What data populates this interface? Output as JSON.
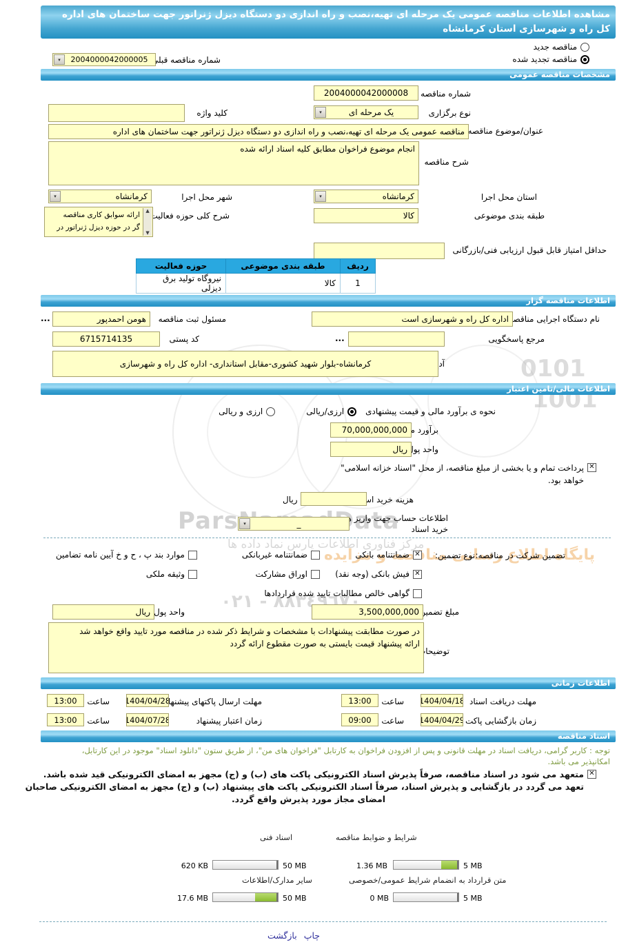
{
  "page": {
    "title": "مشاهده اطلاعات مناقصه عمومی یک مرحله ای تهیه،نصب و راه اندازی دو دستگاه دیزل ژنراتور جهت ساختمان های اداره کل راه و شهرسازی استان کرمانشاه"
  },
  "tender_state": {
    "new_label": "مناقصه جدید",
    "new_selected": false,
    "renewed_label": "مناقصه تجدید شده",
    "renewed_selected": true,
    "prev_number_label": "شماره مناقصه قبلی",
    "prev_number_value": "2004000042000005"
  },
  "general": {
    "header": "مشخصات مناقصه عمومی",
    "number_label": "شماره مناقصه",
    "number_value": "2004000042000008",
    "type_label": "نوع برگزاری",
    "type_value": "یک مرحله ای",
    "keyword_label": "کلید واژه",
    "keyword_value": "",
    "subject_label": "عنوان/موضوع مناقصه",
    "subject_value": "مناقصه عمومی یک مرحله ای تهیه،نصب و راه اندازی دو دستگاه دیزل ژنراتور جهت ساختمان های اداره",
    "description_label": "شرح مناقصه",
    "description_value": "انجام موضوع فراخوان مطابق کلیه اسناد ارائه شده",
    "province_label": "استان محل اجرا",
    "province_value": "کرمانشاه",
    "city_label": "شهر محل اجرا",
    "city_value": "کرمانشاه",
    "category_label": "طبقه بندی موضوعی",
    "category_value": "کالا",
    "activity_label": "شرح کلی حوزه فعالیت",
    "activity_line1": "ارائه سوابق کاری مناقصه",
    "activity_line2": "گر در حوزه دیزل ژنراتور در",
    "min_score_label": "حداقل امتیاز قابل قبول ارزیابی فنی/بازرگانی",
    "min_score_value": "",
    "table": {
      "headers": [
        "ردیف",
        "طبقه بندی موضوعی",
        "حوزه فعالیت"
      ],
      "row": [
        "1",
        "کالا",
        "نیروگاه تولید برق دیزلی"
      ]
    }
  },
  "employer": {
    "header": "اطلاعات مناقصه گزار",
    "agency_label": "نام دستگاه اجرایی مناقصه گزار",
    "agency_value": "اداره کل راه و شهرسازی است",
    "registrar_label": "مسئول ثبت مناقصه",
    "registrar_value": "هومن احمدپور",
    "ellipsis": "...",
    "contact_label": "مرجع پاسخگویی",
    "contact_value": "",
    "postal_label": "کد پستی",
    "postal_value": "6715714135",
    "address_label": "آدرس",
    "address_value": "کرمانشاه-بلوار شهید کشوری-مقابل استانداری- اداره کل راه و شهرسازی"
  },
  "financial": {
    "header": "اطلاعات مالی/تامین اعتبار",
    "estimation_label": "نحوه ی برآورد مالی و قیمت پیشنهادی",
    "option_rial": "ارزی/ریالی",
    "option_rial_selected": true,
    "option_both": "ارزی و ریالی",
    "option_both_selected": false,
    "estimate_label": "برآورد مالی",
    "estimate_value": "70,000,000,000",
    "currency_label": "واحد پول",
    "currency_value": "ریال",
    "treasury_line1": "پرداخت تمام و یا بخشی از مبلغ مناقصه، از محل \"اسناد خزانه اسلامی\"",
    "treasury_line2": "خواهد بود.",
    "treasury_checked": true,
    "doc_fee_label": "هزینه خرید اسناد",
    "doc_fee_value": "",
    "doc_fee_unit": "ریال",
    "account_label1": "اطلاعات حساب جهت واریز هزینه",
    "account_label2": "خرید اسناد",
    "account_value": "_"
  },
  "guarantee": {
    "section_label": "تضمین شرکت در مناقصه:",
    "type_label": "نوع تضمین:",
    "options": [
      {
        "label": "ضمانتنامه بانکی",
        "checked": true
      },
      {
        "label": "ضمانتنامه غیربانکی",
        "checked": false
      },
      {
        "label": "موارد بند پ ، ح و خ آیین نامه تضامین",
        "checked": false
      },
      {
        "label": "فیش بانکی (وجه نقد)",
        "checked": true
      },
      {
        "label": "اوراق مشارکت",
        "checked": false
      },
      {
        "label": "وثیقه ملکی",
        "checked": false
      },
      {
        "label": "گواهی خالص مطالبات تایید شده قراردادها",
        "checked": false
      }
    ],
    "amount_label": "مبلغ تضمین",
    "amount_value": "3,500,000,000",
    "currency_label": "واحد پول",
    "currency_value": "ریال",
    "notes_label": "توضیحات",
    "notes_line1": "در صورت مطابقت پیشنهادات با مشخصات و شرایط ذکر شده در مناقصه مورد تایید واقع خواهد شد",
    "notes_line2": "ارائه پیشنهاد قیمت بایستی به صورت مقطوع ارائه گردد"
  },
  "schedule": {
    "header": "اطلاعات زمانی",
    "hour_label": "ساعت",
    "items": [
      {
        "label": "مهلت دریافت اسناد",
        "date": "1404/04/18",
        "time": "13:00"
      },
      {
        "label": "مهلت ارسال پاکتهای پیشنهاد",
        "date": "1404/04/28",
        "time": "13:00"
      },
      {
        "label": "زمان بازگشایی پاکت ها",
        "date": "1404/04/29",
        "time": "09:00"
      },
      {
        "label": "زمان اعتبار پیشنهاد",
        "date": "1404/07/28",
        "time": "13:00"
      }
    ]
  },
  "documents": {
    "header": "اسناد مناقصه",
    "note_line1": "توجه : کاربر گرامی، دریافت اسناد در مهلت قانونی و پس از افزودن فراخوان به کارتابل \"فراخوان های من\"، از طریق ستون \"دانلود اسناد\" موجود در این کارتابل،",
    "note_line2": "امکانپذیر می باشد.",
    "commitment_checked": true,
    "commitment_line1": "متعهد می شود در اسناد مناقصه، صرفاً پذیرش اسناد الکترونیکی پاکت های (ب) و (ج) مجهز به امضای الکترونیکی قید شده باشد.",
    "commitment_line2": "تعهد می گردد در بازگشایی و پذیرش اسناد، صرفاً اسناد الکترونیکی پاکت های پیشنهاد (ب) و (ج) مجهز به امضای الکترونیکی صاحبان",
    "commitment_line3": "امضای مجاز مورد پذیرش واقع گردد.",
    "uploads": [
      {
        "label": "شرایط و ضوابط مناقصه",
        "current": "1.36 MB",
        "max": "5 MB",
        "percent": 27
      },
      {
        "label": "اسناد فنی",
        "current": "620 KB",
        "max": "50 MB",
        "percent": 2
      },
      {
        "label": "متن قرارداد به انضمام شرایط عمومی/خصوصی",
        "current": "0 MB",
        "max": "5 MB",
        "percent": 0
      },
      {
        "label": "سایر مدارک/اطلاعات",
        "current": "17.6 MB",
        "max": "50 MB",
        "percent": 35
      }
    ]
  },
  "footer": {
    "print_label": "چاپ",
    "back_label": "بازگشت"
  },
  "watermark": {
    "brand": "ParsNamadData",
    "brand_fa": "مرکز فناوری اطلاعات پارس نماد داده ها",
    "site": "پایگاه اطلاع رسانی مناقصه و مزایده",
    "phone": "۸۸۳٤۹٦۷۰ - ۰۲۱",
    "digits1": "0101",
    "digits2": "1001"
  },
  "colors": {
    "header_blue": "#2391c4",
    "field_yellow": "#ffffc8",
    "table_header_blue": "#29a8e0",
    "progress_green": "#8abb31",
    "note_green": "#7f9c42",
    "link_blue": "#30309c"
  }
}
